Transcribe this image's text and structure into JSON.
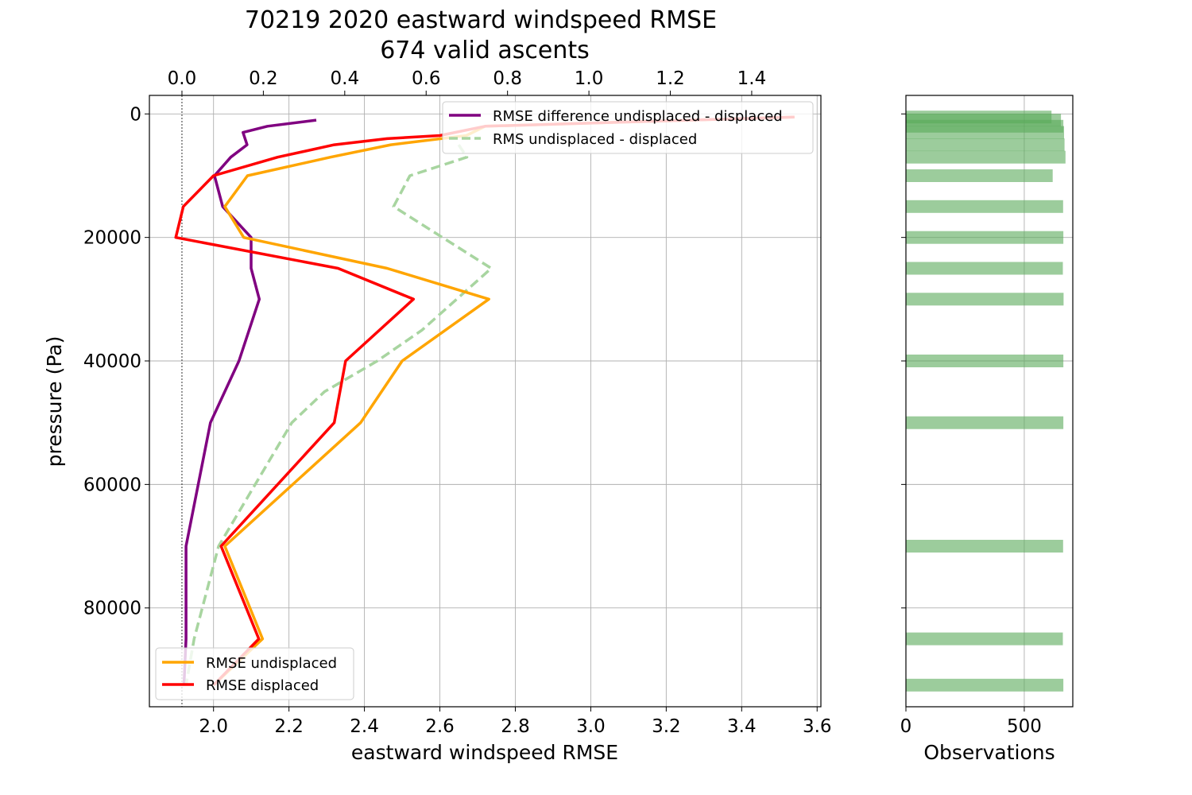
{
  "title": {
    "line1": "70219 2020 eastward windspeed RMSE",
    "line2": "674 valid ascents"
  },
  "chart_data": [
    {
      "type": "line",
      "panel": "main",
      "ylabel": "pressure (Pa)",
      "ylim": [
        96000,
        -3000
      ],
      "xlabel_bottom": "eastward windspeed RMSE",
      "xlim_bottom": [
        1.83,
        3.61
      ],
      "xlim_top": [
        -0.08,
        1.57
      ],
      "grid": true,
      "y_ticks": [
        "0",
        "20000",
        "40000",
        "60000",
        "80000"
      ],
      "y_tick_values": [
        0,
        20000,
        40000,
        60000,
        80000
      ],
      "x_bottom_ticks": [
        "2.0",
        "2.2",
        "2.4",
        "2.6",
        "2.8",
        "3.0",
        "3.2",
        "3.4",
        "3.6"
      ],
      "x_bottom_tick_values": [
        2.0,
        2.2,
        2.4,
        2.6,
        2.8,
        3.0,
        3.2,
        3.4,
        3.6
      ],
      "x_top_ticks": [
        "0.0",
        "0.2",
        "0.4",
        "0.6",
        "0.8",
        "1.0",
        "1.2",
        "1.4"
      ],
      "x_top_tick_values": [
        0.0,
        0.2,
        0.4,
        0.6,
        0.8,
        1.0,
        1.2,
        1.4
      ],
      "reference_line_top_x": 0.0,
      "series": [
        {
          "name": "RMSE undisplaced",
          "axis": "bottom",
          "color": "#ffa500",
          "style": "solid",
          "points": [
            [
              3.54,
              500
            ],
            [
              2.72,
              2000
            ],
            [
              2.67,
              3500
            ],
            [
              2.47,
              5000
            ],
            [
              2.31,
              7000
            ],
            [
              2.09,
              10000
            ],
            [
              2.03,
              15000
            ],
            [
              2.08,
              20000
            ],
            [
              2.46,
              25000
            ],
            [
              2.73,
              30000
            ],
            [
              2.5,
              40000
            ],
            [
              2.39,
              50000
            ],
            [
              2.03,
              70000
            ],
            [
              2.13,
              85000
            ],
            [
              2.0,
              92500
            ]
          ]
        },
        {
          "name": "RMSE displaced",
          "axis": "bottom",
          "color": "#ff0000",
          "style": "solid",
          "points": [
            [
              3.54,
              500
            ],
            [
              2.72,
              2000
            ],
            [
              2.6,
              3500
            ],
            [
              2.46,
              4000
            ],
            [
              2.32,
              5000
            ],
            [
              2.17,
              7000
            ],
            [
              2.0,
              10000
            ],
            [
              1.92,
              15000
            ],
            [
              1.9,
              20000
            ],
            [
              2.33,
              25000
            ],
            [
              2.53,
              30000
            ],
            [
              2.35,
              40000
            ],
            [
              2.32,
              50000
            ],
            [
              2.02,
              70000
            ],
            [
              2.12,
              85000
            ],
            [
              2.0,
              92500
            ]
          ]
        },
        {
          "name": "RMSE difference undisplaced - displaced",
          "axis": "top",
          "color": "#800080",
          "style": "solid",
          "points": [
            [
              0.33,
              1000
            ],
            [
              0.21,
              2000
            ],
            [
              0.15,
              3000
            ],
            [
              0.16,
              5000
            ],
            [
              0.12,
              7000
            ],
            [
              0.08,
              10000
            ],
            [
              0.1,
              15000
            ],
            [
              0.17,
              20000
            ],
            [
              0.17,
              25000
            ],
            [
              0.19,
              30000
            ],
            [
              0.14,
              40000
            ],
            [
              0.07,
              50000
            ],
            [
              0.01,
              70000
            ],
            [
              0.01,
              85000
            ],
            [
              0.005,
              92500
            ]
          ]
        },
        {
          "name": "RMS undisplaced - displaced",
          "axis": "top",
          "color": "#a8d5a0",
          "style": "dashed",
          "points": [
            [
              0.68,
              5000
            ],
            [
              0.7,
              7000
            ],
            [
              0.56,
              10000
            ],
            [
              0.52,
              15000
            ],
            [
              0.76,
              25000
            ],
            [
              0.59,
              35000
            ],
            [
              0.48,
              40000
            ],
            [
              0.35,
              45000
            ],
            [
              0.27,
              50000
            ],
            [
              0.09,
              70000
            ],
            [
              0.03,
              85000
            ],
            [
              0.01,
              92500
            ]
          ]
        }
      ],
      "legends": [
        {
          "placement": "top-right",
          "entries": [
            "RMSE difference undisplaced - displaced",
            "RMS undisplaced - displaced"
          ]
        },
        {
          "placement": "bottom-left",
          "entries": [
            "RMSE undisplaced",
            "RMSE displaced"
          ]
        }
      ]
    },
    {
      "type": "bar",
      "panel": "side",
      "orientation": "horizontal",
      "xlabel": "Observations",
      "xlim": [
        0,
        705
      ],
      "x_ticks": [
        "0",
        "500"
      ],
      "x_tick_values": [
        0,
        500
      ],
      "grid": true,
      "color": "#5aaa5a",
      "alpha": 0.6,
      "bars": [
        {
          "pressure": 500,
          "count": 615
        },
        {
          "pressure": 1000,
          "count": 655
        },
        {
          "pressure": 2000,
          "count": 665
        },
        {
          "pressure": 3000,
          "count": 668
        },
        {
          "pressure": 5000,
          "count": 670
        },
        {
          "pressure": 7000,
          "count": 674
        },
        {
          "pressure": 10000,
          "count": 620
        },
        {
          "pressure": 15000,
          "count": 664
        },
        {
          "pressure": 20000,
          "count": 665
        },
        {
          "pressure": 25000,
          "count": 663
        },
        {
          "pressure": 30000,
          "count": 666
        },
        {
          "pressure": 40000,
          "count": 665
        },
        {
          "pressure": 50000,
          "count": 665
        },
        {
          "pressure": 70000,
          "count": 664
        },
        {
          "pressure": 85000,
          "count": 663
        },
        {
          "pressure": 92500,
          "count": 665
        }
      ]
    }
  ]
}
